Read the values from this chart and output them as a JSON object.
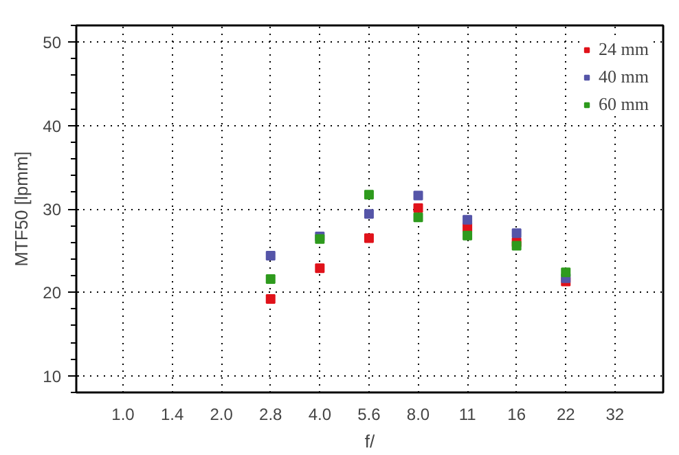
{
  "chart_data": {
    "type": "scatter",
    "xlabel": "f/",
    "ylabel": "MTF50 [lpmm]",
    "categories": [
      "1.0",
      "1.4",
      "2.0",
      "2.8",
      "4.0",
      "5.6",
      "8.0",
      "11",
      "16",
      "22",
      "32"
    ],
    "series": [
      {
        "name": "24 mm",
        "color": "#e0121a",
        "values": [
          null,
          null,
          null,
          19.2,
          22.9,
          26.5,
          30.1,
          27.8,
          26.0,
          21.3,
          null
        ]
      },
      {
        "name": "40 mm",
        "color": "#5555a8",
        "values": [
          null,
          null,
          null,
          24.4,
          26.7,
          29.4,
          31.6,
          28.7,
          27.1,
          21.7,
          null
        ]
      },
      {
        "name": "60 mm",
        "color": "#2e9a1d",
        "values": [
          null,
          null,
          null,
          21.6,
          26.4,
          31.7,
          29.0,
          26.8,
          25.6,
          22.4,
          null
        ]
      }
    ],
    "ylim": [
      8,
      52
    ],
    "yticks": [
      10,
      20,
      30,
      40,
      50
    ],
    "grid": true,
    "legend": "top right",
    "marker": "square"
  }
}
